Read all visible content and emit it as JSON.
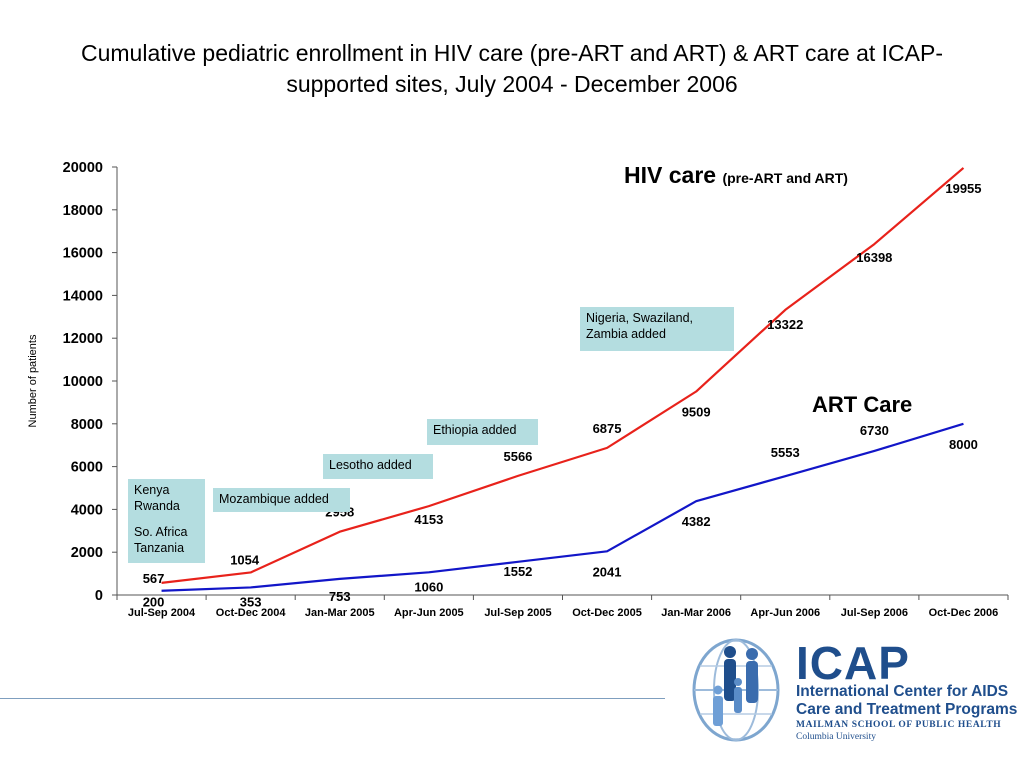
{
  "slide": {
    "title": "Cumulative pediatric enrollment in HIV care (pre-ART and ART) & ART care at ICAP-supported sites, July 2004 - December 2006"
  },
  "chart_data": {
    "type": "line",
    "title": "Cumulative pediatric enrollment in HIV care (pre-ART and ART) & ART care at ICAP-supported sites, July 2004 - December 2006",
    "xlabel": "",
    "ylabel": "Number of patients",
    "ylim": [
      0,
      20000
    ],
    "yticks": [
      0,
      2000,
      4000,
      6000,
      8000,
      10000,
      12000,
      14000,
      16000,
      18000,
      20000
    ],
    "grid": false,
    "categories": [
      "Jul-Sep 2004",
      "Oct-Dec 2004",
      "Jan-Mar 2005",
      "Apr-Jun 2005",
      "Jul-Sep 2005",
      "Oct-Dec 2005",
      "Jan-Mar 2006",
      "Apr-Jun 2006",
      "Jul-Sep 2006",
      "Oct-Dec 2006"
    ],
    "series": [
      {
        "name": "HIV care",
        "name_sub": "(pre-ART and ART)",
        "color": "#e8221b",
        "values": [
          567,
          1054,
          2958,
          4153,
          5566,
          6875,
          9509,
          13322,
          16398,
          19955
        ]
      },
      {
        "name": "ART Care",
        "name_sub": "",
        "color": "#1216c8",
        "values": [
          200,
          353,
          753,
          1060,
          1552,
          2041,
          4382,
          5553,
          6730,
          8000
        ]
      }
    ],
    "annotations": [
      {
        "lines": [
          "Kenya",
          "Rwanda",
          "",
          "So. Africa",
          "Tanzania"
        ]
      },
      {
        "lines": [
          "Mozambique added"
        ]
      },
      {
        "lines": [
          "Lesotho added"
        ]
      },
      {
        "lines": [
          "Ethiopia added"
        ]
      },
      {
        "lines": [
          "Nigeria, Swaziland,",
          "Zambia added"
        ]
      }
    ]
  },
  "logo": {
    "brand": "ICAP",
    "line1": "International Center for AIDS",
    "line2": "Care and Treatment Programs",
    "line3": "MAILMAN SCHOOL OF PUBLIC HEALTH",
    "line4": "Columbia University",
    "color": "#1f4e8c"
  }
}
